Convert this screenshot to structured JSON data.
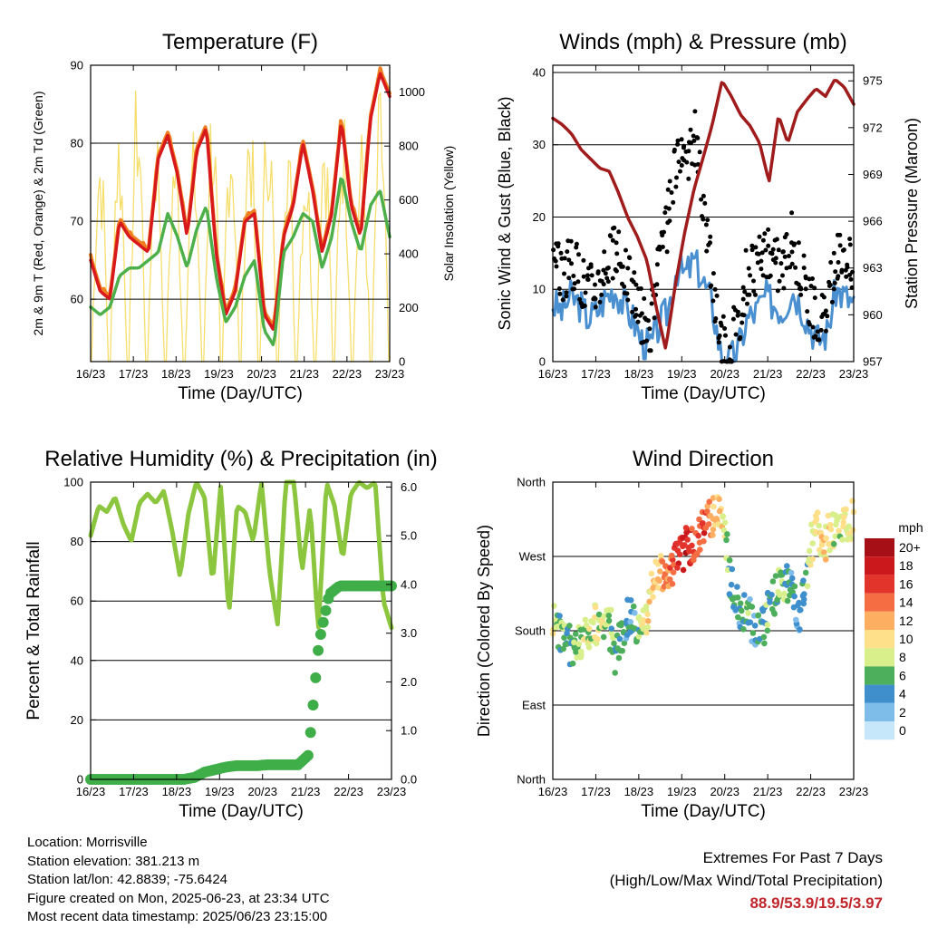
{
  "figure": {
    "info": {
      "location": "Location: Morrisville",
      "elevation": "Station elevation: 381.213 m",
      "latlon": "Station lat/lon: 42.8839; -75.6424",
      "created": "Figure created on Mon, 2025-06-23, at 23:34 UTC",
      "recent": "Most recent data timestamp: 2025/06/23 23:15:00"
    },
    "extremes": {
      "line1": "Extremes For Past 7 Days",
      "line2": "(High/Low/Max Wind/Total Precipitation)",
      "values": "88.9/53.9/19.5/3.97",
      "value_color": "#c0252b"
    }
  },
  "chart_data": [
    {
      "type": "line",
      "title": "Temperature (F)",
      "xlabel": "Time (Day/UTC)",
      "ylabel": "2m & 9m T (Red, Orange) & 2m Td (Green)",
      "y2label": "Solar Insolation (Yellow)",
      "x_ticks": [
        "16/23",
        "17/23",
        "18/23",
        "19/23",
        "20/23",
        "21/23",
        "22/23",
        "23/23"
      ],
      "ylim": [
        52,
        90
      ],
      "y_ticks": [
        60,
        70,
        80,
        90
      ],
      "y2lim": [
        0,
        1100
      ],
      "y2_ticks": [
        0,
        200,
        400,
        600,
        800,
        1000
      ],
      "grid": true,
      "colors": {
        "t2m": "#d7191c",
        "t9m": "#f07f20",
        "td": "#4daf4a",
        "solar": "#f6de6c"
      },
      "series": [
        {
          "key": "t2m",
          "values": [
            65,
            61,
            60,
            70,
            68,
            67,
            66,
            78,
            81,
            76,
            68,
            79,
            82,
            66,
            58,
            61,
            70,
            71,
            58,
            56,
            68,
            72,
            80,
            74,
            66,
            71,
            83,
            72,
            68,
            83,
            89,
            86
          ]
        },
        {
          "key": "td",
          "values": [
            59,
            58,
            59,
            63,
            64,
            64,
            65,
            66,
            71,
            68,
            64,
            69,
            72,
            63,
            57,
            59,
            63,
            65,
            56,
            54,
            66,
            68,
            71,
            70,
            64,
            68,
            76,
            70,
            66,
            72,
            74,
            68
          ]
        },
        {
          "key": "solar_peaks",
          "values": [
            880,
            950,
            1080,
            960,
            880,
            870,
            1050,
            1000,
            1020,
            1060,
            990,
            860,
            1000,
            1000,
            880,
            1050
          ]
        }
      ]
    },
    {
      "type": "line",
      "title": "Winds (mph) & Pressure (mb)",
      "xlabel": "Time (Day/UTC)",
      "ylabel": "Sonic Wind & Gust (Blue, Black)",
      "y2label": "Station Pressure (Maroon)",
      "x_ticks": [
        "16/23",
        "17/23",
        "18/23",
        "19/23",
        "20/23",
        "21/23",
        "22/23",
        "23/23"
      ],
      "ylim": [
        0,
        41
      ],
      "y_ticks": [
        0,
        10,
        20,
        30,
        40
      ],
      "y2lim": [
        957,
        976
      ],
      "y2_ticks": [
        957,
        960,
        963,
        966,
        969,
        972,
        975
      ],
      "grid": true,
      "colors": {
        "wind": "#4a90d0",
        "gust": "#000000",
        "pressure": "#a01c1c"
      },
      "series": [
        {
          "key": "wind",
          "values": [
            8,
            7,
            9,
            8,
            6,
            7,
            9,
            10,
            8,
            6,
            3,
            2,
            5,
            7,
            13,
            12,
            14,
            11,
            8,
            1,
            0,
            2,
            6,
            7,
            9,
            8,
            7,
            10,
            8,
            5,
            3,
            4,
            10,
            9,
            8
          ]
        },
        {
          "key": "gust",
          "values": [
            13,
            12,
            14,
            12,
            10,
            11,
            14,
            15,
            13,
            10,
            6,
            5,
            13,
            20,
            28,
            26,
            32,
            22,
            12,
            3,
            2,
            5,
            12,
            13,
            15,
            14,
            13,
            17,
            13,
            9,
            5,
            6,
            13,
            16,
            12
          ]
        },
        {
          "key": "pressure",
          "values": [
            972.6,
            972.2,
            971.6,
            970.6,
            970.0,
            969.4,
            969.2,
            967.8,
            966.2,
            965.0,
            963.5,
            960.5,
            957.8,
            961.8,
            965.2,
            968.0,
            970.1,
            972.3,
            975.0,
            974.0,
            972.8,
            972.1,
            971.0,
            968.5,
            972.8,
            971.0,
            973.0,
            973.8,
            974.5,
            974.0,
            975.1,
            974.6,
            973.5
          ]
        }
      ]
    },
    {
      "type": "line",
      "title": "Relative Humidity (%) & Precipitation (in)",
      "xlabel": "Time (Day/UTC)",
      "ylabel": "Percent & Total Rainfall",
      "x_ticks": [
        "16/23",
        "17/23",
        "18/23",
        "19/23",
        "20/23",
        "21/23",
        "22/23",
        "23/23"
      ],
      "ylim": [
        0,
        100
      ],
      "y_ticks": [
        0,
        20,
        40,
        60,
        80,
        100
      ],
      "y2lim": [
        0,
        6.1
      ],
      "y2_ticks": [
        "0.0",
        "1.0",
        "2.0",
        "3.0",
        "4.0",
        "5.0",
        "6.0"
      ],
      "grid": true,
      "colors": {
        "rh": "#8cc63f",
        "precip": "#3fae49"
      },
      "series": [
        {
          "key": "rh",
          "values": [
            82,
            92,
            90,
            95,
            86,
            80,
            93,
            96,
            93,
            97,
            84,
            68,
            89,
            100,
            95,
            66,
            99,
            55,
            92,
            90,
            80,
            100,
            70,
            52,
            100,
            100,
            70,
            92,
            50,
            100,
            92,
            74,
            96,
            100,
            98,
            100,
            60,
            51
          ]
        },
        {
          "key": "precip",
          "values": [
            0,
            0,
            0,
            0,
            0,
            0,
            0,
            0,
            0,
            0,
            0.04,
            0.15,
            0.2,
            0.25,
            0.28,
            0.28,
            0.28,
            0.3,
            0.3,
            0.3,
            0.3,
            0.5,
            2.8,
            3.8,
            3.97,
            3.97,
            3.97,
            3.97,
            3.97,
            3.97
          ]
        }
      ]
    },
    {
      "type": "scatter",
      "title": "Wind Direction",
      "xlabel": "Time (Day/UTC)",
      "ylabel": "Direction (Colored By Speed)",
      "x_ticks": [
        "16/23",
        "17/23",
        "18/23",
        "19/23",
        "20/23",
        "21/23",
        "22/23",
        "23/23"
      ],
      "y_ticks": [
        "North",
        "East",
        "South",
        "West",
        "North"
      ],
      "ylim": [
        0,
        360
      ],
      "grid": true,
      "legend": {
        "title": "mph",
        "labels": [
          "20+",
          "18",
          "16",
          "14",
          "12",
          "10",
          "8",
          "6",
          "4",
          "2",
          "0"
        ],
        "colors": [
          "#a50f15",
          "#cb181d",
          "#e3342c",
          "#f46d43",
          "#fdae61",
          "#fee08b",
          "#d9ef8b",
          "#4dae5c",
          "#3f8fcd",
          "#7ebcea",
          "#c6e6fa"
        ]
      },
      "series": [
        {
          "key": "direction",
          "values": [
            190,
            175,
            160,
            170,
            180,
            190,
            200,
            150,
            190,
            200,
            170,
            220,
            250,
            240,
            270,
            280,
            290,
            300,
            320,
            330,
            250,
            200,
            210,
            170,
            190,
            220,
            240,
            230,
            190,
            280,
            300,
            290,
            310,
            300,
            320
          ]
        },
        {
          "key": "speed",
          "values": [
            8,
            6,
            5,
            7,
            8,
            9,
            7,
            6,
            5,
            4,
            8,
            10,
            12,
            14,
            16,
            18,
            14,
            16,
            12,
            10,
            5,
            4,
            6,
            3,
            5,
            6,
            7,
            4,
            3,
            8,
            9,
            10,
            8,
            9,
            9
          ]
        }
      ]
    }
  ]
}
